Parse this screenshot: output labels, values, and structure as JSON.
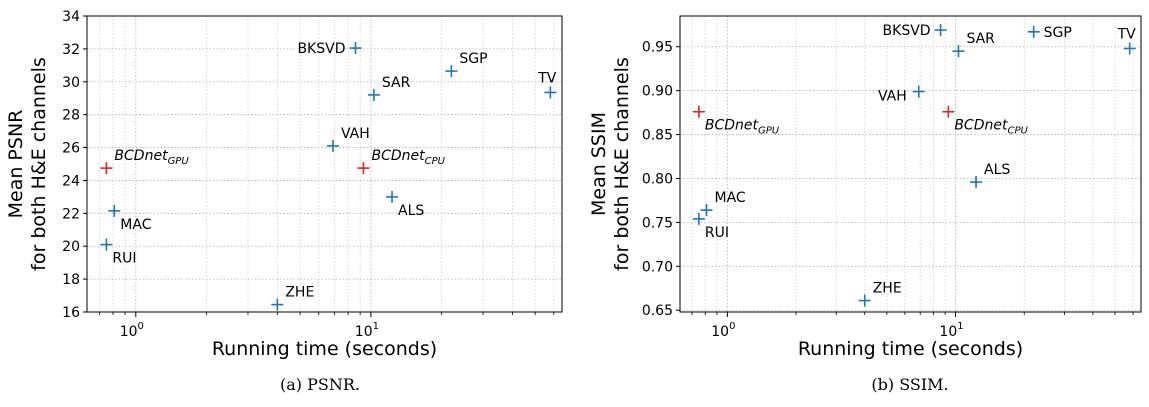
{
  "chart_data": [
    {
      "type": "scatter",
      "caption": "(a) PSNR.",
      "xlabel": "Running time (seconds)",
      "ylabel_lines": [
        "Mean PSNR",
        "for both H&E channels"
      ],
      "x_scale": "log",
      "xlim": [
        0.62,
        65
      ],
      "ylim": [
        16,
        34
      ],
      "x_ticks": [
        {
          "value": 1,
          "base": "10",
          "exp": "0"
        },
        {
          "value": 10,
          "base": "10",
          "exp": "1"
        }
      ],
      "y_ticks": [
        {
          "value": 16,
          "label": "16"
        },
        {
          "value": 18,
          "label": "18"
        },
        {
          "value": 20,
          "label": "20"
        },
        {
          "value": 22,
          "label": "22"
        },
        {
          "value": 24,
          "label": "24"
        },
        {
          "value": 26,
          "label": "26"
        },
        {
          "value": 28,
          "label": "28"
        },
        {
          "value": 30,
          "label": "30"
        },
        {
          "value": 32,
          "label": "32"
        },
        {
          "value": 34,
          "label": "34"
        }
      ],
      "grid": true,
      "points": [
        {
          "name": "BCDnet",
          "sub": "GPU",
          "x": 0.75,
          "y": 24.75,
          "color": "#d62728",
          "italic": true,
          "anchor": "above-right"
        },
        {
          "name": "MAC",
          "x": 0.81,
          "y": 22.15,
          "color": "#1f77b4",
          "anchor": "below-right"
        },
        {
          "name": "RUI",
          "x": 0.75,
          "y": 20.1,
          "color": "#1f77b4",
          "anchor": "below-right"
        },
        {
          "name": "ZHE",
          "x": 4.0,
          "y": 16.45,
          "color": "#1f77b4",
          "anchor": "above-right"
        },
        {
          "name": "VAH",
          "x": 6.9,
          "y": 26.1,
          "color": "#1f77b4",
          "anchor": "above-right"
        },
        {
          "name": "BKSVD",
          "x": 8.6,
          "y": 32.05,
          "color": "#1f77b4",
          "anchor": "left"
        },
        {
          "name": "BCDnet",
          "sub": "CPU",
          "x": 9.3,
          "y": 24.75,
          "color": "#d62728",
          "italic": true,
          "anchor": "above-right"
        },
        {
          "name": "SAR",
          "x": 10.3,
          "y": 29.2,
          "color": "#1f77b4",
          "anchor": "above-right"
        },
        {
          "name": "ALS",
          "x": 12.3,
          "y": 23.0,
          "color": "#1f77b4",
          "anchor": "below-right"
        },
        {
          "name": "SGP",
          "x": 22.0,
          "y": 30.65,
          "color": "#1f77b4",
          "anchor": "above-right"
        },
        {
          "name": "TV",
          "x": 58.0,
          "y": 29.35,
          "color": "#1f77b4",
          "anchor": "above-left"
        }
      ]
    },
    {
      "type": "scatter",
      "caption": "(b) SSIM.",
      "xlabel": "Running time (seconds)",
      "ylabel_lines": [
        "Mean SSIM",
        "for both H&E channels"
      ],
      "x_scale": "log",
      "xlim": [
        0.62,
        65
      ],
      "ylim": [
        0.648,
        0.985
      ],
      "x_ticks": [
        {
          "value": 1,
          "base": "10",
          "exp": "0"
        },
        {
          "value": 10,
          "base": "10",
          "exp": "1"
        }
      ],
      "y_ticks": [
        {
          "value": 0.65,
          "label": "0.65"
        },
        {
          "value": 0.7,
          "label": "0.70"
        },
        {
          "value": 0.75,
          "label": "0.75"
        },
        {
          "value": 0.8,
          "label": "0.80"
        },
        {
          "value": 0.85,
          "label": "0.85"
        },
        {
          "value": 0.9,
          "label": "0.90"
        },
        {
          "value": 0.95,
          "label": "0.95"
        }
      ],
      "grid": true,
      "points": [
        {
          "name": "BCDnet",
          "sub": "GPU",
          "x": 0.75,
          "y": 0.876,
          "color": "#d62728",
          "italic": true,
          "anchor": "below-right"
        },
        {
          "name": "MAC",
          "x": 0.81,
          "y": 0.764,
          "color": "#1f77b4",
          "anchor": "above-right"
        },
        {
          "name": "RUI",
          "x": 0.75,
          "y": 0.754,
          "color": "#1f77b4",
          "anchor": "below-right"
        },
        {
          "name": "ZHE",
          "x": 4.0,
          "y": 0.661,
          "color": "#1f77b4",
          "anchor": "above-right"
        },
        {
          "name": "VAH",
          "x": 6.9,
          "y": 0.899,
          "color": "#1f77b4",
          "anchor": "left-below"
        },
        {
          "name": "BKSVD",
          "x": 8.6,
          "y": 0.969,
          "color": "#1f77b4",
          "anchor": "left"
        },
        {
          "name": "BCDnet",
          "sub": "CPU",
          "x": 9.3,
          "y": 0.876,
          "color": "#d62728",
          "italic": true,
          "anchor": "below-right"
        },
        {
          "name": "SAR",
          "x": 10.3,
          "y": 0.945,
          "color": "#1f77b4",
          "anchor": "above-right"
        },
        {
          "name": "ALS",
          "x": 12.3,
          "y": 0.796,
          "color": "#1f77b4",
          "anchor": "above-right"
        },
        {
          "name": "SGP",
          "x": 22.0,
          "y": 0.967,
          "color": "#1f77b4",
          "anchor": "right"
        },
        {
          "name": "TV",
          "x": 58.0,
          "y": 0.948,
          "color": "#1f77b4",
          "anchor": "above-left"
        }
      ]
    }
  ]
}
